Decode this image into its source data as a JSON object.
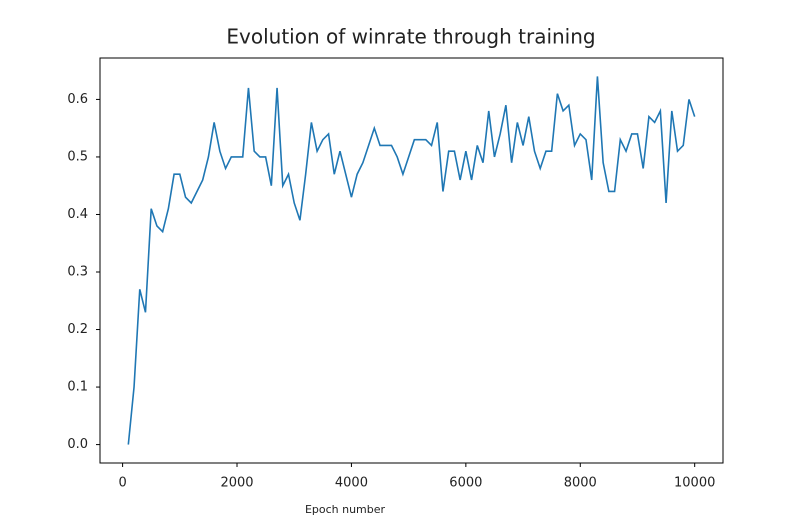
{
  "chart_data": {
    "type": "line",
    "title": "Evolution of winrate through training",
    "xlabel": "Epoch number",
    "x": [
      100,
      200,
      300,
      400,
      500,
      600,
      700,
      800,
      900,
      1000,
      1100,
      1200,
      1300,
      1400,
      1500,
      1600,
      1700,
      1800,
      1900,
      2000,
      2100,
      2200,
      2300,
      2400,
      2500,
      2600,
      2700,
      2800,
      2900,
      3000,
      3100,
      3200,
      3300,
      3400,
      3500,
      3600,
      3700,
      3800,
      3900,
      4000,
      4100,
      4200,
      4300,
      4400,
      4500,
      4600,
      4700,
      4800,
      4900,
      5000,
      5100,
      5200,
      5300,
      5400,
      5500,
      5600,
      5700,
      5800,
      5900,
      6000,
      6100,
      6200,
      6300,
      6400,
      6500,
      6600,
      6700,
      6800,
      6900,
      7000,
      7100,
      7200,
      7300,
      7400,
      7500,
      7600,
      7700,
      7800,
      7900,
      8000,
      8100,
      8200,
      8300,
      8400,
      8500,
      8600,
      8700,
      8800,
      8900,
      9000,
      9100,
      9200,
      9300,
      9400,
      9500,
      9600,
      9700,
      9800,
      9900,
      10000
    ],
    "series": [
      {
        "color": "#1f77b4",
        "values": [
          0.0,
          0.1,
          0.27,
          0.23,
          0.41,
          0.38,
          0.37,
          0.41,
          0.47,
          0.47,
          0.43,
          0.42,
          0.44,
          0.46,
          0.5,
          0.56,
          0.51,
          0.48,
          0.5,
          0.5,
          0.5,
          0.62,
          0.51,
          0.5,
          0.5,
          0.45,
          0.62,
          0.45,
          0.47,
          0.42,
          0.39,
          0.47,
          0.56,
          0.51,
          0.53,
          0.54,
          0.47,
          0.51,
          0.47,
          0.43,
          0.47,
          0.49,
          0.52,
          0.55,
          0.52,
          0.52,
          0.52,
          0.5,
          0.47,
          0.5,
          0.53,
          0.53,
          0.53,
          0.52,
          0.56,
          0.44,
          0.51,
          0.51,
          0.46,
          0.51,
          0.46,
          0.52,
          0.49,
          0.58,
          0.5,
          0.54,
          0.59,
          0.49,
          0.56,
          0.52,
          0.57,
          0.51,
          0.48,
          0.51,
          0.51,
          0.61,
          0.58,
          0.59,
          0.52,
          0.54,
          0.53,
          0.46,
          0.64,
          0.49,
          0.44,
          0.44,
          0.53,
          0.51,
          0.54,
          0.54,
          0.48,
          0.57,
          0.56,
          0.58,
          0.42,
          0.58,
          0.51,
          0.52,
          0.6,
          0.57
        ]
      }
    ],
    "xlim": [
      -395,
      10495
    ],
    "ylim": [
      -0.032,
      0.672
    ],
    "xticks": [
      0,
      2000,
      4000,
      6000,
      8000,
      10000
    ],
    "yticks": [
      {
        "value": 0,
        "label": "0.0"
      },
      0.1,
      0.2,
      0.3,
      0.4,
      0.5,
      0.6
    ]
  }
}
